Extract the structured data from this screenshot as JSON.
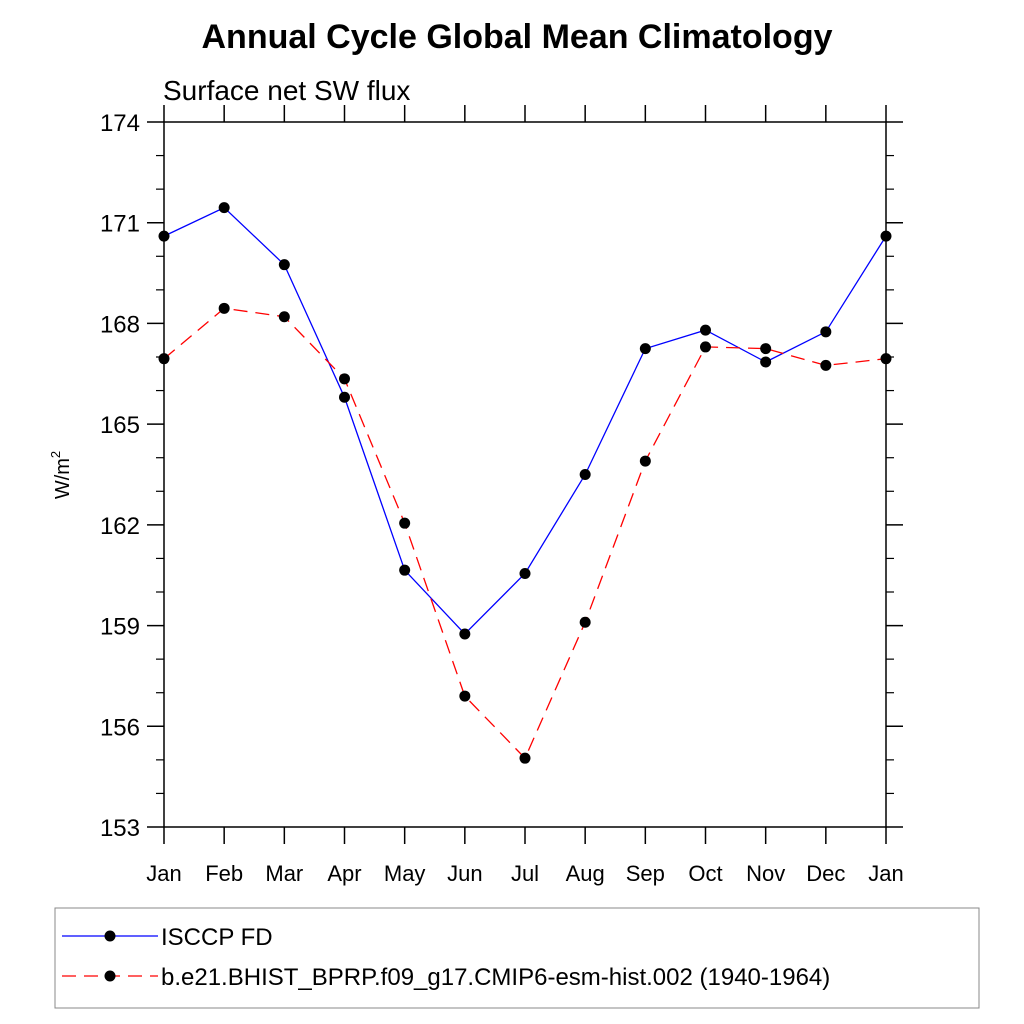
{
  "chart_data": {
    "type": "line",
    "title": "Annual Cycle Global Mean Climatology",
    "subtitle": "Surface net SW flux",
    "ylabel": {
      "base": "W/m",
      "sup": "2"
    },
    "ylim": [
      153,
      174
    ],
    "yticks": [
      153,
      156,
      159,
      162,
      165,
      168,
      171,
      174
    ],
    "categories": [
      "Jan",
      "Feb",
      "Mar",
      "Apr",
      "May",
      "Jun",
      "Jul",
      "Aug",
      "Sep",
      "Oct",
      "Nov",
      "Dec",
      "Jan"
    ],
    "legend_position": "bottom",
    "series": [
      {
        "name": "ISCCP FD",
        "color": "#0000ff",
        "dash": "solid",
        "values": [
          170.6,
          171.45,
          169.75,
          165.8,
          160.65,
          158.75,
          160.55,
          163.5,
          167.25,
          167.8,
          166.85,
          167.75,
          170.6
        ]
      },
      {
        "name": "b.e21.BHIST_BPRP.f09_g17.CMIP6-esm-hist.002 (1940-1964)",
        "color": "#ff0000",
        "dash": "dashed",
        "values": [
          166.95,
          168.45,
          168.2,
          166.35,
          162.05,
          156.9,
          155.05,
          159.1,
          163.9,
          167.3,
          167.25,
          166.75,
          166.95
        ]
      }
    ]
  }
}
